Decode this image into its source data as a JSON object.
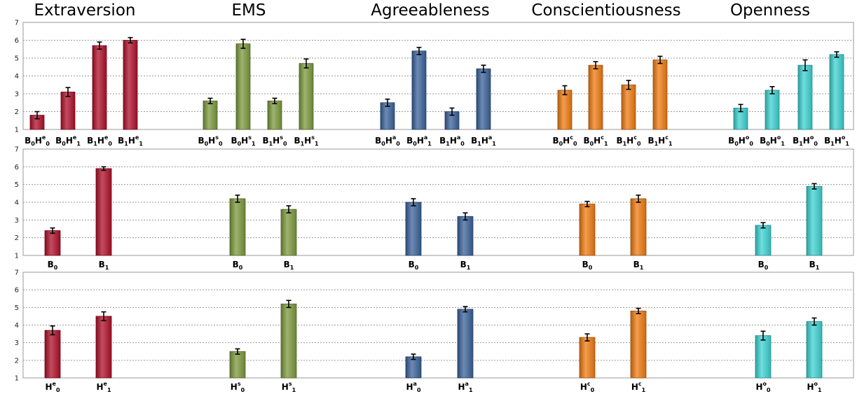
{
  "titles": [
    "Extraversion",
    "EMS",
    "Agreeableness",
    "Conscientiousness",
    "Openness"
  ],
  "colors": {
    "extraversion": "#b0102a",
    "ems": "#7d9a3e",
    "agreeableness": "#3b639a",
    "conscientiousness": "#f07c13",
    "openness": "#3dd3d3"
  },
  "chart_data": [
    {
      "type": "bar",
      "panel": "top",
      "ylim": [
        1,
        7
      ],
      "yticks": [
        1,
        2,
        3,
        4,
        5,
        6,
        7
      ],
      "grid": true,
      "groups": [
        {
          "trait": "Extraversion",
          "color_key": "extraversion",
          "categories": [
            [
              "B",
              "0",
              "H",
              "e",
              "0"
            ],
            [
              "B",
              "0",
              "H",
              "e",
              "1"
            ],
            [
              "B",
              "1",
              "H",
              "e",
              "0"
            ],
            [
              "B",
              "1",
              "H",
              "e",
              "1"
            ]
          ],
          "values": [
            1.8,
            3.1,
            5.7,
            6.0
          ],
          "errors": [
            0.2,
            0.25,
            0.2,
            0.15
          ]
        },
        {
          "trait": "EMS",
          "color_key": "ems",
          "categories": [
            [
              "B",
              "0",
              "H",
              "s",
              "0"
            ],
            [
              "B",
              "0",
              "H",
              "s",
              "1"
            ],
            [
              "B",
              "1",
              "H",
              "s",
              "0"
            ],
            [
              "B",
              "1",
              "H",
              "s",
              "1"
            ]
          ],
          "values": [
            2.6,
            5.8,
            2.6,
            4.7
          ],
          "errors": [
            0.15,
            0.25,
            0.15,
            0.25
          ]
        },
        {
          "trait": "Agreeableness",
          "color_key": "agreeableness",
          "categories": [
            [
              "B",
              "0",
              "H",
              "a",
              "0"
            ],
            [
              "B",
              "0",
              "H",
              "a",
              "1"
            ],
            [
              "B",
              "1",
              "H",
              "a",
              "0"
            ],
            [
              "B",
              "1",
              "H",
              "a",
              "1"
            ]
          ],
          "values": [
            2.5,
            5.4,
            2.0,
            4.4
          ],
          "errors": [
            0.2,
            0.2,
            0.2,
            0.2
          ]
        },
        {
          "trait": "Conscientiousness",
          "color_key": "conscientiousness",
          "categories": [
            [
              "B",
              "0",
              "H",
              "c",
              "0"
            ],
            [
              "B",
              "0",
              "H",
              "c",
              "1"
            ],
            [
              "B",
              "1",
              "H",
              "c",
              "0"
            ],
            [
              "B",
              "1",
              "H",
              "c",
              "1"
            ]
          ],
          "values": [
            3.2,
            4.6,
            3.5,
            4.9
          ],
          "errors": [
            0.25,
            0.2,
            0.25,
            0.2
          ]
        },
        {
          "trait": "Openness",
          "color_key": "openness",
          "categories": [
            [
              "B",
              "0",
              "H",
              "o",
              "0"
            ],
            [
              "B",
              "0",
              "H",
              "o",
              "1"
            ],
            [
              "B",
              "1",
              "H",
              "o",
              "0"
            ],
            [
              "B",
              "1",
              "H",
              "o",
              "1"
            ]
          ],
          "values": [
            2.2,
            3.2,
            4.6,
            5.2
          ],
          "errors": [
            0.2,
            0.2,
            0.3,
            0.15
          ]
        }
      ]
    },
    {
      "type": "bar",
      "panel": "middle",
      "ylim": [
        1,
        7
      ],
      "yticks": [
        1,
        2,
        3,
        4,
        5,
        6,
        7
      ],
      "grid": true,
      "groups": [
        {
          "trait": "Extraversion",
          "color_key": "extraversion",
          "categories": [
            [
              "B",
              "0"
            ],
            [
              "B",
              "1"
            ]
          ],
          "values": [
            2.4,
            5.9
          ],
          "errors": [
            0.15,
            0.1
          ]
        },
        {
          "trait": "EMS",
          "color_key": "ems",
          "categories": [
            [
              "B",
              "0"
            ],
            [
              "B",
              "1"
            ]
          ],
          "values": [
            4.2,
            3.6
          ],
          "errors": [
            0.2,
            0.2
          ]
        },
        {
          "trait": "Agreeableness",
          "color_key": "agreeableness",
          "categories": [
            [
              "B",
              "0"
            ],
            [
              "B",
              "1"
            ]
          ],
          "values": [
            4.0,
            3.2
          ],
          "errors": [
            0.2,
            0.2
          ]
        },
        {
          "trait": "Conscientiousness",
          "color_key": "conscientiousness",
          "categories": [
            [
              "B",
              "0"
            ],
            [
              "B",
              "1"
            ]
          ],
          "values": [
            3.9,
            4.2
          ],
          "errors": [
            0.15,
            0.2
          ]
        },
        {
          "trait": "Openness",
          "color_key": "openness",
          "categories": [
            [
              "B",
              "0"
            ],
            [
              "B",
              "1"
            ]
          ],
          "values": [
            2.7,
            4.9
          ],
          "errors": [
            0.15,
            0.15
          ]
        }
      ]
    },
    {
      "type": "bar",
      "panel": "bottom",
      "ylim": [
        1,
        7
      ],
      "yticks": [
        1,
        2,
        3,
        4,
        5,
        6,
        7
      ],
      "grid": true,
      "groups": [
        {
          "trait": "Extraversion",
          "color_key": "extraversion",
          "categories": [
            [
              "H",
              "e",
              "0"
            ],
            [
              "H",
              "e",
              "1"
            ]
          ],
          "values": [
            3.7,
            4.5
          ],
          "errors": [
            0.25,
            0.25
          ]
        },
        {
          "trait": "EMS",
          "color_key": "ems",
          "categories": [
            [
              "H",
              "s",
              "0"
            ],
            [
              "H",
              "s",
              "1"
            ]
          ],
          "values": [
            2.5,
            5.2
          ],
          "errors": [
            0.15,
            0.2
          ]
        },
        {
          "trait": "Agreeableness",
          "color_key": "agreeableness",
          "categories": [
            [
              "H",
              "a",
              "0"
            ],
            [
              "H",
              "a",
              "1"
            ]
          ],
          "values": [
            2.2,
            4.9
          ],
          "errors": [
            0.15,
            0.15
          ]
        },
        {
          "trait": "Conscientiousness",
          "color_key": "conscientiousness",
          "categories": [
            [
              "H",
              "c",
              "0"
            ],
            [
              "H",
              "c",
              "1"
            ]
          ],
          "values": [
            3.3,
            4.8
          ],
          "errors": [
            0.2,
            0.15
          ]
        },
        {
          "trait": "Openness",
          "color_key": "openness",
          "categories": [
            [
              "H",
              "o",
              "0"
            ],
            [
              "H",
              "o",
              "1"
            ]
          ],
          "values": [
            3.4,
            4.2
          ],
          "errors": [
            0.25,
            0.2
          ]
        }
      ]
    }
  ]
}
